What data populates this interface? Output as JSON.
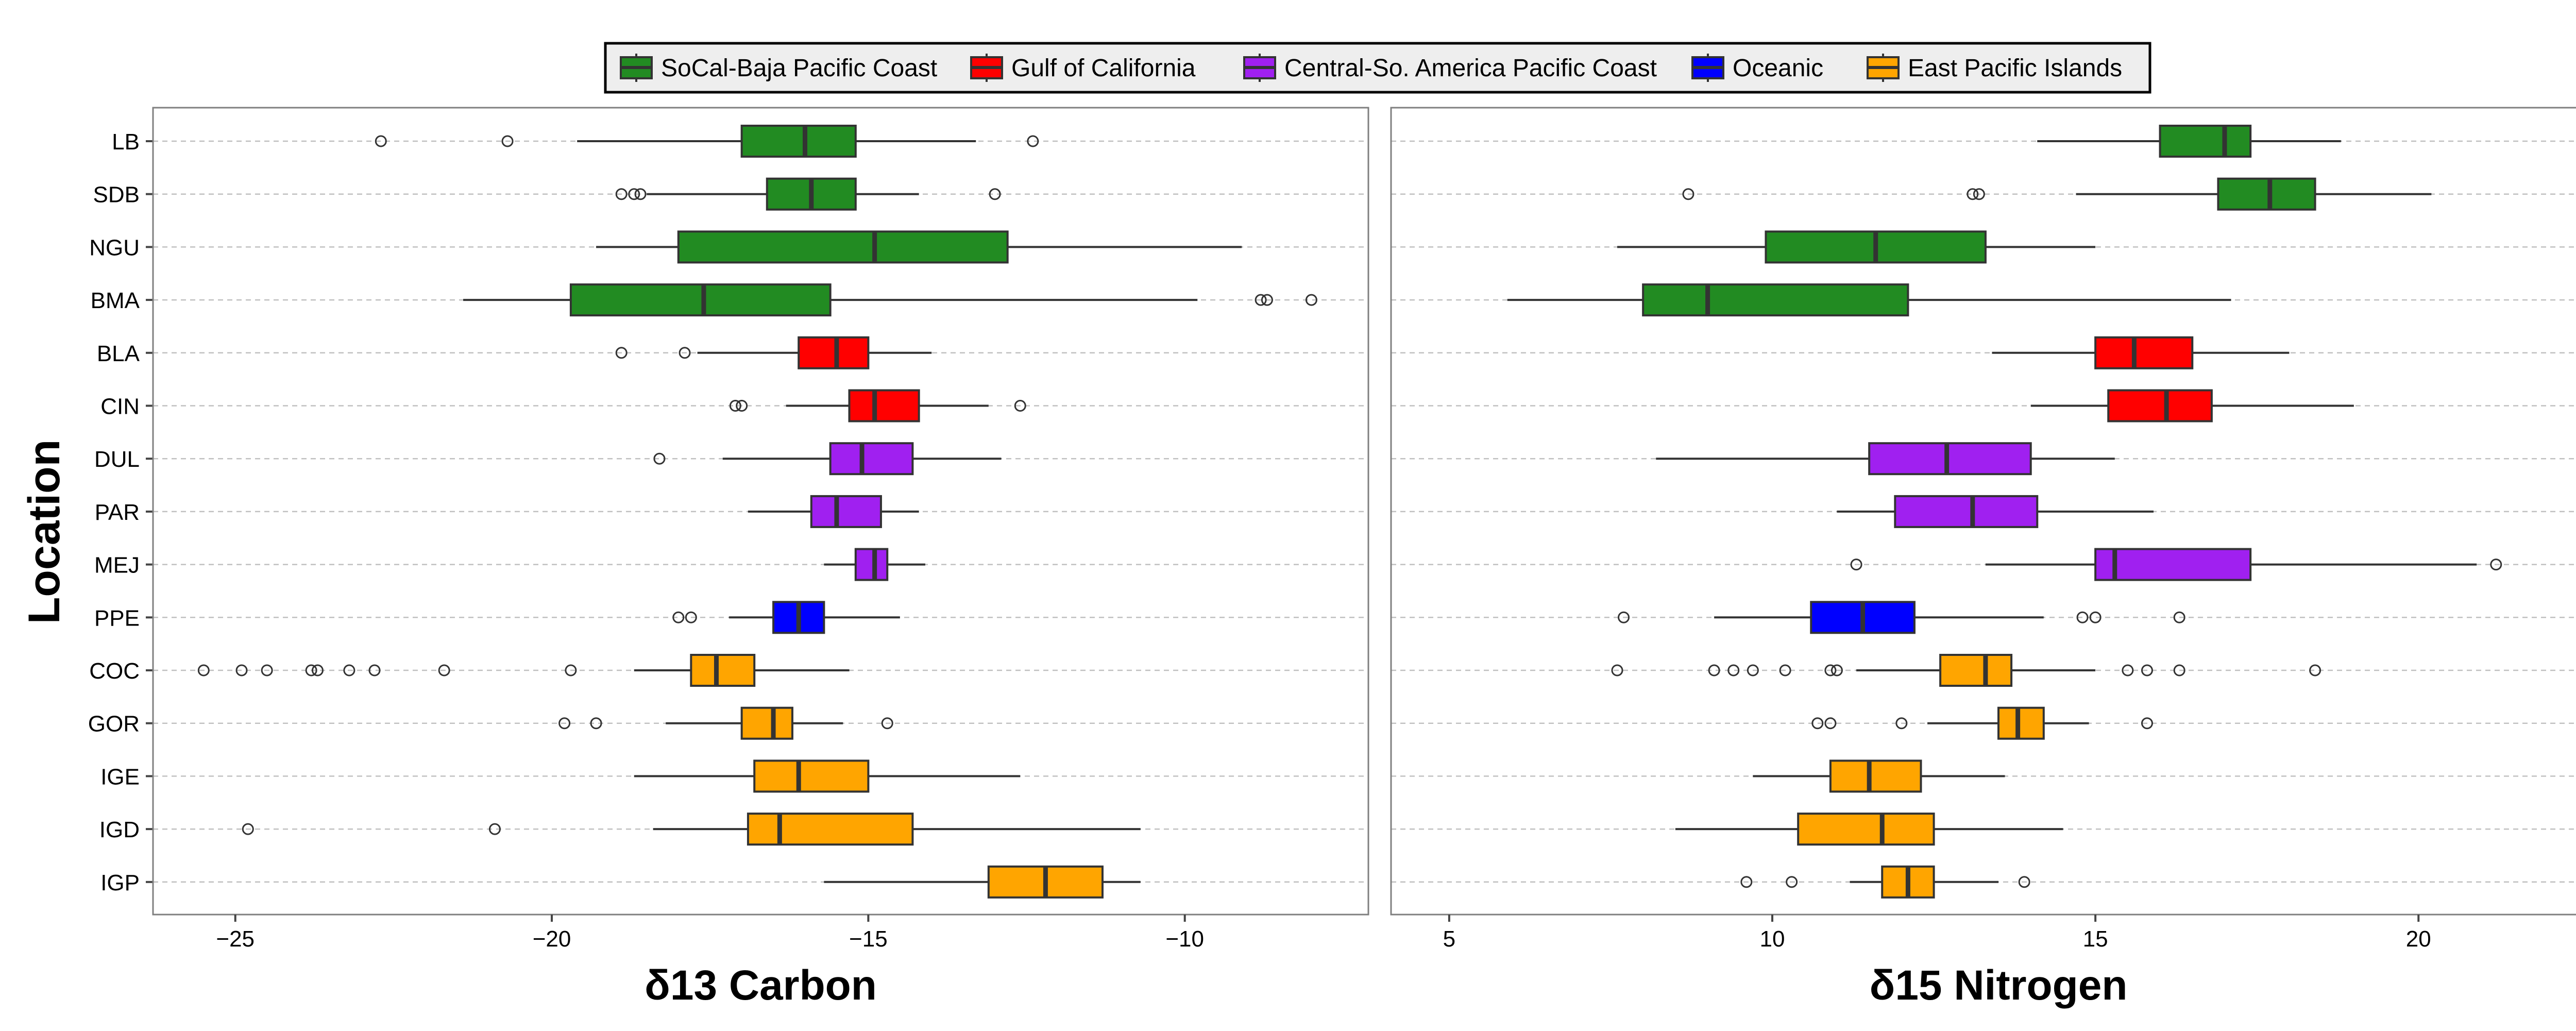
{
  "chart_data": [
    {
      "type": "boxplot",
      "xlabel": "δ13 Carbon",
      "ylabel": "Location",
      "xlim": [
        -26.3,
        -7.1
      ],
      "xticks": [
        -25,
        -20,
        -15,
        -10
      ],
      "xtick_labels": [
        "−25",
        "−20",
        "−15",
        "−10"
      ],
      "categories": [
        "LB",
        "SDB",
        "NGU",
        "BMA",
        "BLA",
        "CIN",
        "DUL",
        "PAR",
        "MEJ",
        "PPE",
        "COC",
        "GOR",
        "IGE",
        "IGD",
        "IGP"
      ],
      "grid": "horizontal dashed",
      "boxes": [
        {
          "cat": "LB",
          "group": "SoCal-Baja Pacific Coast",
          "wlo": -19.6,
          "q1": -17.0,
          "med": -16.0,
          "q3": -15.2,
          "whi": -13.3,
          "outliers": [
            -22.7,
            -20.7,
            -12.4
          ]
        },
        {
          "cat": "SDB",
          "group": "SoCal-Baja Pacific Coast",
          "wlo": -18.5,
          "q1": -16.6,
          "med": -15.9,
          "q3": -15.2,
          "whi": -14.2,
          "outliers": [
            -18.9,
            -18.7,
            -18.6,
            -13.0
          ]
        },
        {
          "cat": "NGU",
          "group": "SoCal-Baja Pacific Coast",
          "wlo": -19.3,
          "q1": -18.0,
          "med": -14.9,
          "q3": -12.8,
          "whi": -9.1,
          "outliers": []
        },
        {
          "cat": "BMA",
          "group": "SoCal-Baja Pacific Coast",
          "wlo": -21.4,
          "q1": -19.7,
          "med": -17.6,
          "q3": -15.6,
          "whi": -9.8,
          "outliers": [
            -8.8,
            -8.7,
            -8.0
          ]
        },
        {
          "cat": "BLA",
          "group": "Gulf of California",
          "wlo": -17.7,
          "q1": -16.1,
          "med": -15.5,
          "q3": -15.0,
          "whi": -14.0,
          "outliers": [
            -18.9,
            -17.9
          ]
        },
        {
          "cat": "CIN",
          "group": "Gulf of California",
          "wlo": -16.3,
          "q1": -15.3,
          "med": -14.9,
          "q3": -14.2,
          "whi": -13.1,
          "outliers": [
            -17.1,
            -17.0,
            -12.6
          ]
        },
        {
          "cat": "DUL",
          "group": "Central-So. America Pacific Coast",
          "wlo": -17.3,
          "q1": -15.6,
          "med": -15.1,
          "q3": -14.3,
          "whi": -12.9,
          "outliers": [
            -18.3
          ]
        },
        {
          "cat": "PAR",
          "group": "Central-So. America Pacific Coast",
          "wlo": -16.9,
          "q1": -15.9,
          "med": -15.5,
          "q3": -14.8,
          "whi": -14.2,
          "outliers": []
        },
        {
          "cat": "MEJ",
          "group": "Central-So. America Pacific Coast",
          "wlo": -15.7,
          "q1": -15.2,
          "med": -14.9,
          "q3": -14.7,
          "whi": -14.1,
          "outliers": []
        },
        {
          "cat": "PPE",
          "group": "Oceanic",
          "wlo": -17.2,
          "q1": -16.5,
          "med": -16.1,
          "q3": -15.7,
          "whi": -14.5,
          "outliers": [
            -18.0,
            -17.8
          ]
        },
        {
          "cat": "COC",
          "group": "East Pacific Islands",
          "wlo": -18.7,
          "q1": -17.8,
          "med": -17.4,
          "q3": -16.8,
          "whi": -15.3,
          "outliers": [
            -25.5,
            -24.9,
            -24.5,
            -23.8,
            -23.7,
            -23.2,
            -22.8,
            -21.7,
            -19.7
          ]
        },
        {
          "cat": "GOR",
          "group": "East Pacific Islands",
          "wlo": -18.2,
          "q1": -17.0,
          "med": -16.5,
          "q3": -16.2,
          "whi": -15.4,
          "outliers": [
            -19.8,
            -19.3,
            -14.7
          ]
        },
        {
          "cat": "IGE",
          "group": "East Pacific Islands",
          "wlo": -18.7,
          "q1": -16.8,
          "med": -16.1,
          "q3": -15.0,
          "whi": -12.6,
          "outliers": []
        },
        {
          "cat": "IGD",
          "group": "East Pacific Islands",
          "wlo": -18.4,
          "q1": -16.9,
          "med": -16.4,
          "q3": -14.3,
          "whi": -10.7,
          "outliers": [
            -24.8,
            -20.9
          ]
        },
        {
          "cat": "IGP",
          "group": "East Pacific Islands",
          "wlo": -15.7,
          "q1": -13.1,
          "med": -12.2,
          "q3": -11.3,
          "whi": -10.7,
          "outliers": []
        }
      ]
    },
    {
      "type": "boxplot",
      "xlabel": "δ15 Nitrogen",
      "xlim": [
        4.1,
        22.9
      ],
      "xticks": [
        5,
        10,
        15,
        20
      ],
      "xtick_labels": [
        "5",
        "10",
        "15",
        "20"
      ],
      "categories": [
        "LB",
        "SDB",
        "NGU",
        "BMA",
        "BLA",
        "CIN",
        "DUL",
        "PAR",
        "MEJ",
        "PPE",
        "COC",
        "GOR",
        "IGE",
        "IGD",
        "IGP"
      ],
      "grid": "horizontal dashed",
      "boxes": [
        {
          "cat": "LB",
          "group": "SoCal-Baja Pacific Coast",
          "wlo": 14.1,
          "q1": 16.0,
          "med": 17.0,
          "q3": 17.4,
          "whi": 18.8,
          "outliers": []
        },
        {
          "cat": "SDB",
          "group": "SoCal-Baja Pacific Coast",
          "wlo": 14.7,
          "q1": 16.9,
          "med": 17.7,
          "q3": 18.4,
          "whi": 20.2,
          "outliers": [
            8.7,
            13.1,
            13.2
          ]
        },
        {
          "cat": "NGU",
          "group": "SoCal-Baja Pacific Coast",
          "wlo": 7.6,
          "q1": 9.9,
          "med": 11.6,
          "q3": 13.3,
          "whi": 15.0,
          "outliers": []
        },
        {
          "cat": "BMA",
          "group": "SoCal-Baja Pacific Coast",
          "wlo": 5.9,
          "q1": 8.0,
          "med": 9.0,
          "q3": 12.1,
          "whi": 17.1,
          "outliers": []
        },
        {
          "cat": "BLA",
          "group": "Gulf of California",
          "wlo": 13.4,
          "q1": 15.0,
          "med": 15.6,
          "q3": 16.5,
          "whi": 18.0,
          "outliers": []
        },
        {
          "cat": "CIN",
          "group": "Gulf of California",
          "wlo": 14.0,
          "q1": 15.2,
          "med": 16.1,
          "q3": 16.8,
          "whi": 19.0,
          "outliers": []
        },
        {
          "cat": "DUL",
          "group": "Central-So. America Pacific Coast",
          "wlo": 8.2,
          "q1": 11.5,
          "med": 12.7,
          "q3": 14.0,
          "whi": 15.3,
          "outliers": []
        },
        {
          "cat": "PAR",
          "group": "Central-So. America Pacific Coast",
          "wlo": 11.0,
          "q1": 11.9,
          "med": 13.1,
          "q3": 14.1,
          "whi": 15.9,
          "outliers": []
        },
        {
          "cat": "MEJ",
          "group": "Central-So. America Pacific Coast",
          "wlo": 13.3,
          "q1": 15.0,
          "med": 15.3,
          "q3": 17.4,
          "whi": 20.9,
          "outliers": [
            11.3,
            21.2
          ]
        },
        {
          "cat": "PPE",
          "group": "Oceanic",
          "wlo": 9.1,
          "q1": 10.6,
          "med": 11.4,
          "q3": 12.2,
          "whi": 14.2,
          "outliers": [
            7.7,
            14.8,
            15.0,
            16.3
          ]
        },
        {
          "cat": "COC",
          "group": "East Pacific Islands",
          "wlo": 11.3,
          "q1": 12.6,
          "med": 13.3,
          "q3": 13.7,
          "whi": 15.0,
          "outliers": [
            7.6,
            9.1,
            9.4,
            9.7,
            10.2,
            10.9,
            11.0,
            15.5,
            15.8,
            16.3,
            18.4
          ]
        },
        {
          "cat": "GOR",
          "group": "East Pacific Islands",
          "wlo": 12.4,
          "q1": 13.5,
          "med": 13.8,
          "q3": 14.2,
          "whi": 14.9,
          "outliers": [
            10.7,
            10.9,
            12.0,
            15.8
          ]
        },
        {
          "cat": "IGE",
          "group": "East Pacific Islands",
          "wlo": 9.7,
          "q1": 10.9,
          "med": 11.5,
          "q3": 12.3,
          "whi": 13.6,
          "outliers": []
        },
        {
          "cat": "IGD",
          "group": "East Pacific Islands",
          "wlo": 8.5,
          "q1": 10.4,
          "med": 11.7,
          "q3": 12.5,
          "whi": 14.5,
          "outliers": []
        },
        {
          "cat": "IGP",
          "group": "East Pacific Islands",
          "wlo": 11.2,
          "q1": 11.7,
          "med": 12.1,
          "q3": 12.5,
          "whi": 13.5,
          "outliers": [
            9.6,
            10.3,
            13.9
          ]
        }
      ]
    }
  ],
  "legend": {
    "placement": "top-center",
    "items": [
      {
        "label": "SoCal-Baja Pacific Coast",
        "color": "#228b22"
      },
      {
        "label": "Gulf of California",
        "color": "#ff0000"
      },
      {
        "label": "Central-So. America Pacific Coast",
        "color": "#a020f0"
      },
      {
        "label": "Oceanic",
        "color": "#0000ff"
      },
      {
        "label": "East Pacific Islands",
        "color": "#ffa500"
      }
    ]
  },
  "y_axis_title": "Location"
}
